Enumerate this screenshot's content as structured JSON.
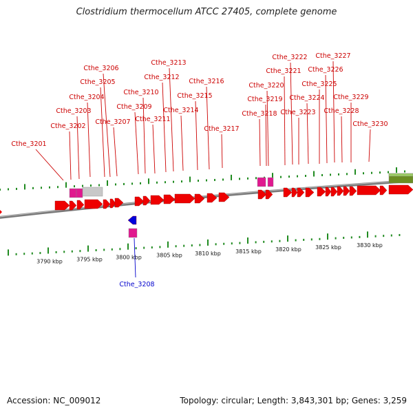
{
  "title": "Clostridium thermocellum ATCC 27405, complete genome",
  "footer": {
    "accession": "Accession: NC_009012",
    "summary": "Topology: circular; Length: 3,843,301 bp; Genes: 3,259"
  },
  "colors": {
    "cds": "#ee0000",
    "rna": "#e0198f",
    "pseudo": "#c8c8c8",
    "reverse_cds": "#0000dd",
    "other_feature": "#6b8e23",
    "label_forward": "#cc0000",
    "label_reverse": "#0000cc",
    "tick": "#1f8a1f"
  },
  "scale": {
    "labels": [
      "3790 kbp",
      "3795 kbp",
      "3800 kbp",
      "3805 kbp",
      "3810 kbp",
      "3815 kbp",
      "3820 kbp",
      "3825 kbp",
      "3830 kbp"
    ]
  },
  "genes_forward": [
    "Cthe_3201",
    "Cthe_3202",
    "Cthe_3203",
    "Cthe_3204",
    "Cthe_3205",
    "Cthe_3206",
    "Cthe_3207",
    "Cthe_3209",
    "Cthe_3210",
    "Cthe_3211",
    "Cthe_3212",
    "Cthe_3213",
    "Cthe_3214",
    "Cthe_3215",
    "Cthe_3216",
    "Cthe_3217",
    "Cthe_3218",
    "Cthe_3219",
    "Cthe_3220",
    "Cthe_3221",
    "Cthe_3222",
    "Cthe_3223",
    "Cthe_3224",
    "Cthe_3225",
    "Cthe_3226",
    "Cthe_3227",
    "Cthe_3228",
    "Cthe_3229",
    "Cthe_3230"
  ],
  "genes_reverse": [
    "Cthe_3208"
  ]
}
